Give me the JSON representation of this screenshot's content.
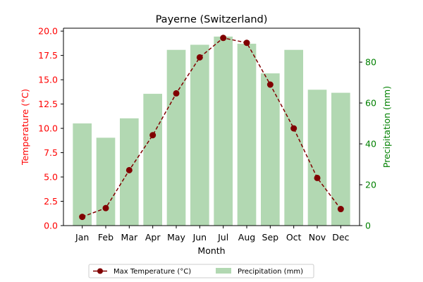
{
  "chart_data": {
    "type": "bar+line",
    "title": "Payerne (Switzerland)",
    "xlabel": "Month",
    "categories": [
      "Jan",
      "Feb",
      "Mar",
      "Apr",
      "May",
      "Jun",
      "Jul",
      "Aug",
      "Sep",
      "Oct",
      "Nov",
      "Dec"
    ],
    "left_axis": {
      "label": "Temperature (°C)",
      "ylim": [
        0,
        20.3
      ],
      "ticks": [
        "0.0",
        "2.5",
        "5.0",
        "7.5",
        "10.0",
        "12.5",
        "15.0",
        "17.5",
        "20.0"
      ],
      "tick_values": [
        0,
        2.5,
        5,
        7.5,
        10,
        12.5,
        15,
        17.5,
        20
      ],
      "color": "#ff0000"
    },
    "right_axis": {
      "label": "Precipitation (mm)",
      "ylim": [
        0,
        96.6
      ],
      "ticks": [
        "0",
        "20",
        "40",
        "60",
        "80"
      ],
      "tick_values": [
        0,
        20,
        40,
        60,
        80
      ],
      "color": "#008000"
    },
    "series": [
      {
        "name": "Max Temperature (°C)",
        "type": "line",
        "axis": "left",
        "color": "#800000",
        "values": [
          0.9,
          1.8,
          5.7,
          9.3,
          13.6,
          17.3,
          19.3,
          18.8,
          14.5,
          10.0,
          4.9,
          1.7
        ]
      },
      {
        "name": "Precipitation (mm)",
        "type": "bar",
        "axis": "right",
        "color": "#b2d8b2",
        "values": [
          50,
          43,
          52.5,
          64.5,
          86,
          88.5,
          92.5,
          89,
          74.5,
          86,
          66.5,
          65
        ]
      }
    ],
    "legend": {
      "placement": "bottom-center",
      "items": [
        "Max Temperature (°C)",
        "Precipitation (mm)"
      ]
    }
  }
}
